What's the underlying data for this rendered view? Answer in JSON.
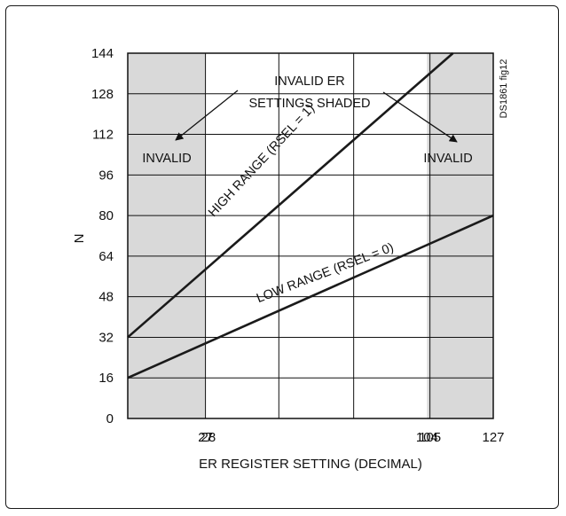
{
  "chart_data": {
    "type": "line",
    "title": "",
    "xlabel": "ER REGISTER SETTING (DECIMAL)",
    "ylabel": "N",
    "xlim": [
      0,
      127
    ],
    "ylim": [
      0,
      144
    ],
    "grid": true,
    "y_ticks": [
      0,
      16,
      32,
      48,
      64,
      80,
      96,
      112,
      128,
      144
    ],
    "x_tick_labels": [
      {
        "value": 27,
        "label": "27"
      },
      {
        "value": 28,
        "label": "28"
      },
      {
        "value": 104,
        "label": "104"
      },
      {
        "value": 105,
        "label": "105"
      },
      {
        "value": 127,
        "label": "127"
      }
    ],
    "x_grid_values": [
      27,
      52.5,
      78.5,
      105
    ],
    "invalid_regions": [
      [
        0,
        27
      ],
      [
        104,
        127
      ]
    ],
    "shade_color": "#d9d9d9",
    "line_color": "#1a1a1a",
    "series": [
      {
        "name": "HIGH RANGE (RSEL = 1)",
        "x": [
          0,
          113
        ],
        "y": [
          32,
          144
        ]
      },
      {
        "name": "LOW RANGE (RSEL = 0)",
        "x": [
          0,
          127
        ],
        "y": [
          16,
          80
        ]
      }
    ],
    "annotations": {
      "invalid_left": "INVALID",
      "invalid_right": "INVALID",
      "shaded_note_line1": "INVALID ER",
      "shaded_note_line2": "SETTINGS SHADED",
      "figure_tag": "DS1861 fig12"
    }
  }
}
